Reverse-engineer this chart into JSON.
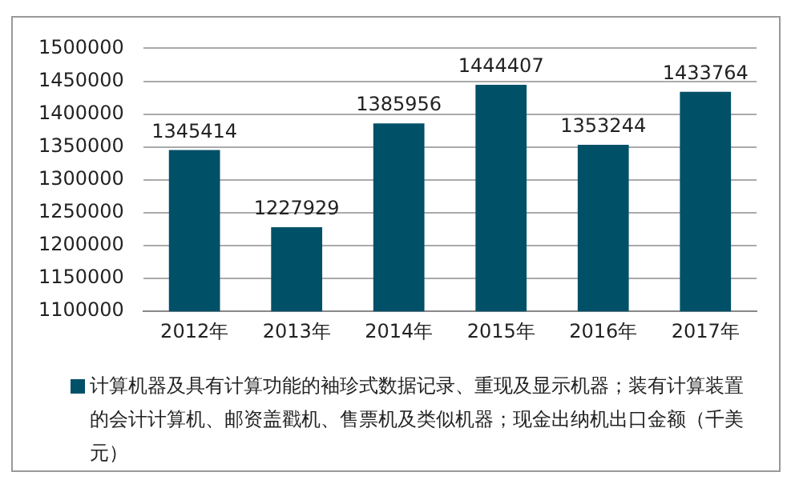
{
  "chart_data": {
    "type": "bar",
    "categories": [
      "2012年",
      "2013年",
      "2014年",
      "2015年",
      "2016年",
      "2017年"
    ],
    "series": [
      {
        "name": "计算机器及具有计算功能的袖珍式数据记录、重现及显示机器；装有计算装置的会计计算机、邮资盖戳机、售票机及类似机器；现金出纳机出口金额（千美元）",
        "color": "#005068",
        "values": [
          1345414,
          1227929,
          1385956,
          1444407,
          1353244,
          1433764
        ]
      }
    ],
    "ylim": [
      1100000,
      1500000
    ],
    "yticks": [
      1100000,
      1150000,
      1200000,
      1250000,
      1300000,
      1350000,
      1400000,
      1450000,
      1500000
    ],
    "grid": "y",
    "legend": "bottom",
    "data_labels": true
  }
}
